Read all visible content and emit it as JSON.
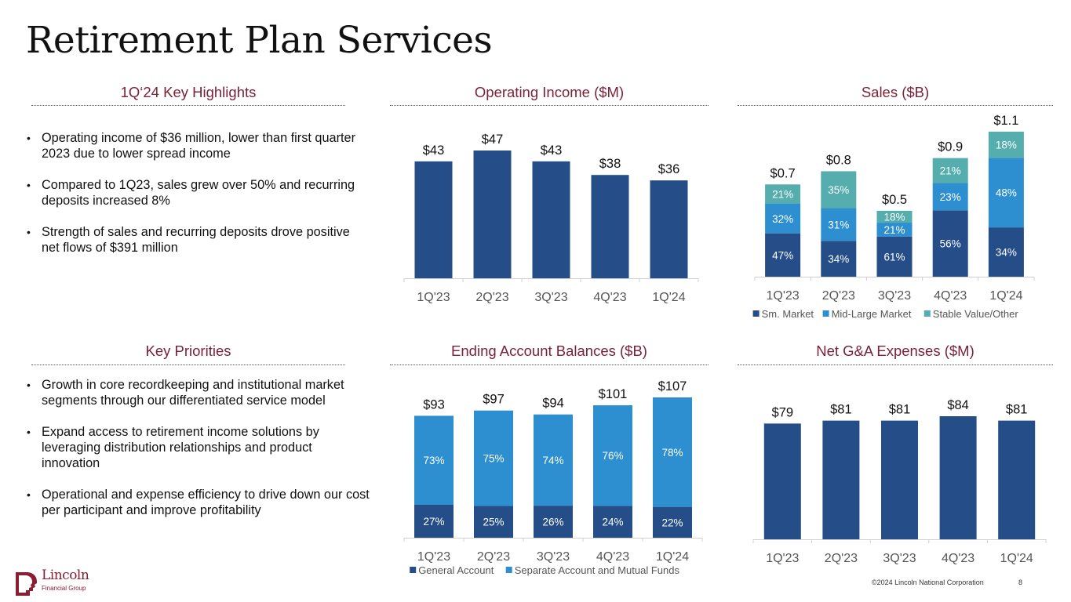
{
  "page": {
    "title": "Retirement Plan Services",
    "footer": {
      "copyright": "©2024 Lincoln National Corporation",
      "page_number": "8"
    },
    "logo": {
      "line1": "Lincoln",
      "line2": "Financial Group"
    }
  },
  "sections": {
    "highlights": {
      "heading": "1Q‘24 Key Highlights",
      "bullets": [
        "Operating income of $36 million, lower than first quarter 2023 due to lower spread income",
        "Compared to 1Q23, sales grew over 50% and recurring deposits increased 8%",
        "Strength of sales and recurring deposits drove positive net flows of $391 million"
      ]
    },
    "priorities": {
      "heading": "Key Priorities",
      "bullets": [
        "Growth in core recordkeeping and institutional market segments through our differentiated service model",
        "Expand access to retirement income solutions by leveraging distribution relationships and product innovation",
        "Operational and expense efficiency to drive down our cost per participant and improve profitability"
      ]
    }
  },
  "colors": {
    "heading": "#7a2238",
    "dark_blue": "#254e89",
    "mid_blue": "#2e8fd0",
    "teal": "#55adae",
    "axis": "#d0d0d0",
    "tick_label": "#555555"
  },
  "chart_data": [
    {
      "id": "operating_income",
      "type": "bar",
      "title": "Operating Income ($M)",
      "categories": [
        "1Q'23",
        "2Q'23",
        "3Q'23",
        "4Q'23",
        "1Q'24"
      ],
      "values": [
        43,
        47,
        43,
        38,
        36
      ],
      "labels": [
        "$43",
        "$47",
        "$43",
        "$38",
        "$36"
      ],
      "xlabel": "",
      "ylabel": "",
      "ylim": [
        0,
        50
      ],
      "grid": false
    },
    {
      "id": "sales",
      "type": "bar",
      "stacked": true,
      "title": "Sales ($B)",
      "categories": [
        "1Q'23",
        "2Q'23",
        "3Q'23",
        "4Q'23",
        "1Q'24"
      ],
      "totals": [
        0.7,
        0.8,
        0.5,
        0.9,
        1.1
      ],
      "total_labels": [
        "$0.7",
        "$0.8",
        "$0.5",
        "$0.9",
        "$1.1"
      ],
      "series": [
        {
          "name": "Sm. Market",
          "values_pct": [
            47,
            34,
            61,
            56,
            34
          ]
        },
        {
          "name": "Mid-Large Market",
          "values_pct": [
            32,
            31,
            21,
            23,
            48
          ]
        },
        {
          "name": "Stable Value/Other",
          "values_pct": [
            21,
            35,
            18,
            21,
            18
          ]
        }
      ],
      "legend": "bottom",
      "ylim": [
        0,
        1.2
      ],
      "grid": false
    },
    {
      "id": "ending_balances",
      "type": "bar",
      "stacked": true,
      "title": "Ending Account Balances ($B)",
      "categories": [
        "1Q'23",
        "2Q'23",
        "3Q'23",
        "4Q'23",
        "1Q'24"
      ],
      "totals": [
        93,
        97,
        94,
        101,
        107
      ],
      "total_labels": [
        "$93",
        "$97",
        "$94",
        "$101",
        "$107"
      ],
      "series": [
        {
          "name": "General Account",
          "values_pct": [
            27,
            25,
            26,
            24,
            22
          ]
        },
        {
          "name": "Separate Account and Mutual Funds",
          "values_pct": [
            73,
            75,
            74,
            76,
            78
          ]
        }
      ],
      "legend": "bottom",
      "ylim": [
        0,
        115
      ],
      "grid": false
    },
    {
      "id": "net_ga_expenses",
      "type": "bar",
      "title": "Net G&A Expenses ($M)",
      "categories": [
        "1Q'23",
        "2Q'23",
        "3Q'23",
        "4Q'23",
        "1Q'24"
      ],
      "values": [
        79,
        81,
        81,
        84,
        81
      ],
      "labels": [
        "$79",
        "$81",
        "$81",
        "$84",
        "$81"
      ],
      "xlabel": "",
      "ylabel": "",
      "ylim": [
        0,
        100
      ],
      "grid": false
    }
  ]
}
